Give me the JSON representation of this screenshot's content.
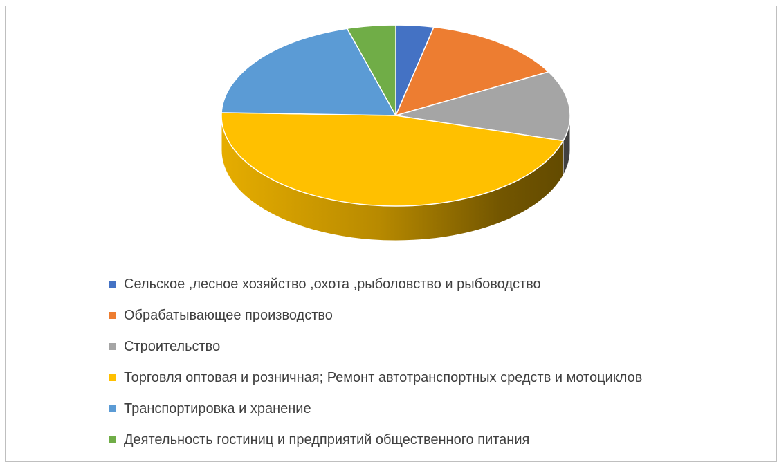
{
  "chart_data": {
    "type": "pie",
    "title": "",
    "legend_position": "bottom",
    "labels": [
      "Сельское ,лесное хозяйство ,охота ,рыболовство и рыбоводство",
      "Обрабатывающее производство",
      "Строительство",
      "Торговля оптовая и розничная; Ремонт автотранспортных средств и мотоциклов",
      "Транспортировка и хранение",
      "Деятельность гостиниц и предприятий общественного питания"
    ],
    "values": [
      3.5,
      13.5,
      12.5,
      46,
      20,
      4.5
    ],
    "colors": [
      "#4472C4",
      "#ED7D31",
      "#A5A5A5",
      "#FFC000",
      "#5B9BD5",
      "#70AD47"
    ]
  }
}
